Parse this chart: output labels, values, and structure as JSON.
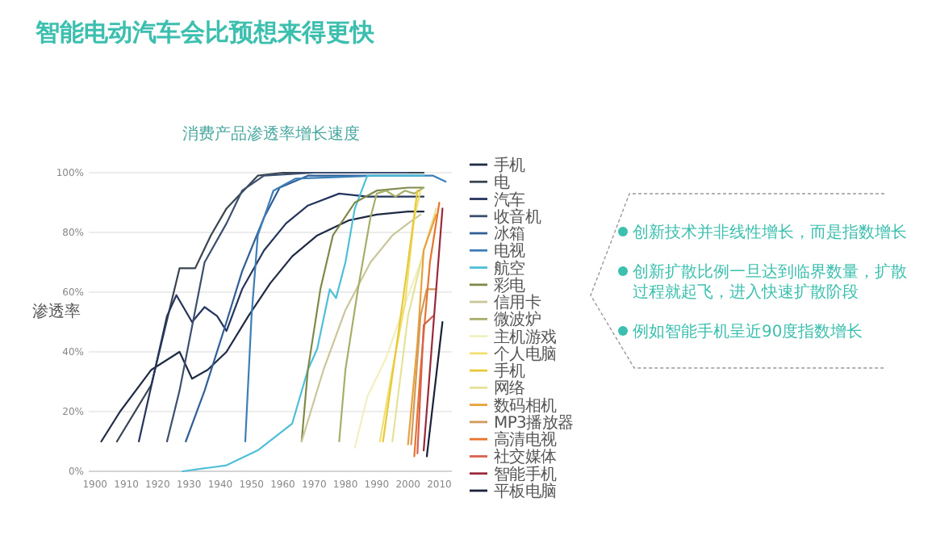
{
  "chart_data": {
    "type": "line",
    "title": "智能电动汽车会比预想来得更快",
    "subtitle": "消费产品渗透率增长速度",
    "ylabel": "渗透率",
    "xlim": [
      1898,
      2014
    ],
    "ylim": [
      0,
      100
    ],
    "xticks": [
      1900,
      1910,
      1920,
      1930,
      1940,
      1950,
      1960,
      1970,
      1980,
      1990,
      2000,
      2010
    ],
    "yticks": [
      {
        "value": 0,
        "label": "0%"
      },
      {
        "value": 20,
        "label": "20%"
      },
      {
        "value": 40,
        "label": "40%"
      },
      {
        "value": 60,
        "label": "60%"
      },
      {
        "value": 80,
        "label": "80%"
      },
      {
        "value": 100,
        "label": "100%"
      }
    ],
    "grid": "y",
    "legend": "right",
    "marker": "none",
    "line_style": "solid",
    "annotations": [
      "创新技术并非线性增长，而是指数增长",
      "创新扩散比例一旦达到临界数量，扩散过程就起飞，进入快速扩散阶段",
      "例如智能手机呈近90度指数增长"
    ],
    "series": [
      {
        "name": "手机",
        "color": "#1f2a44",
        "x": [
          1902,
          1908,
          1918,
          1927,
          1931,
          1936,
          1942,
          1949,
          1956,
          1963,
          1971,
          1981,
          1990,
          2000,
          2005
        ],
        "values": [
          10,
          20,
          34,
          40,
          31,
          34,
          40,
          52,
          63,
          72,
          79,
          84,
          86,
          87,
          87
        ]
      },
      {
        "name": "电",
        "color": "#3a4450",
        "x": [
          1907,
          1918,
          1927,
          1932,
          1937,
          1942,
          1952,
          1960,
          1980,
          2005
        ],
        "values": [
          10,
          29,
          68,
          68,
          79,
          88,
          99,
          100,
          100,
          100
        ]
      },
      {
        "name": "汽车",
        "color": "#24345c",
        "x": [
          1914,
          1923,
          1926,
          1931,
          1935,
          1939,
          1942,
          1947,
          1954,
          1961,
          1968,
          1978,
          1987,
          2000,
          2005
        ],
        "values": [
          10,
          52,
          59,
          50,
          55,
          52,
          47,
          61,
          74,
          83,
          89,
          93,
          92,
          92,
          92
        ]
      },
      {
        "name": "收音机",
        "color": "#3d4f6e",
        "x": [
          1923,
          1927,
          1935,
          1942,
          1947,
          1954,
          1970,
          2000
        ],
        "values": [
          10,
          27,
          70,
          83,
          94,
          99,
          100,
          100
        ]
      },
      {
        "name": "冰箱",
        "color": "#2f5f96",
        "x": [
          1929,
          1935,
          1942,
          1947,
          1954,
          1959,
          1968,
          2005
        ],
        "values": [
          10,
          27,
          50,
          67,
          85,
          95,
          99,
          99
        ]
      },
      {
        "name": "电视",
        "color": "#3c7fb8",
        "x": [
          1948,
          1950,
          1952,
          1957,
          1964,
          1990,
          2008,
          2012
        ],
        "values": [
          10,
          52,
          79,
          94,
          98,
          99,
          99,
          97
        ]
      },
      {
        "name": "航空",
        "color": "#4fbfd8",
        "x": [
          1928,
          1942,
          1952,
          1963,
          1968,
          1971,
          1975,
          1977,
          1980,
          1983,
          1987,
          2005
        ],
        "values": [
          0,
          2,
          7,
          16,
          34,
          41,
          61,
          58,
          70,
          88,
          99,
          99
        ]
      },
      {
        "name": "彩电",
        "color": "#7f8a4a",
        "x": [
          1966,
          1968,
          1972,
          1976,
          1983,
          1990,
          2000,
          2005
        ],
        "values": [
          10,
          34,
          61,
          79,
          90,
          94,
          95,
          95
        ]
      },
      {
        "name": "信用卡",
        "color": "#c9c79a",
        "x": [
          1966,
          1973,
          1980,
          1988,
          1995,
          2000,
          2004
        ],
        "values": [
          10,
          34,
          54,
          70,
          79,
          83,
          86
        ]
      },
      {
        "name": "微波炉",
        "color": "#a9ad6a",
        "x": [
          1978,
          1980,
          1984,
          1988,
          1990,
          1993,
          1996,
          1999,
          2002,
          2005
        ],
        "values": [
          10,
          34,
          61,
          85,
          93,
          94,
          92,
          94,
          93,
          95
        ]
      },
      {
        "name": "主机游戏",
        "color": "#f2efc0",
        "x": [
          1983,
          1987,
          1993,
          1999,
          2004
        ],
        "values": [
          8,
          25,
          38,
          56,
          70
        ]
      },
      {
        "name": "个人电脑",
        "color": "#f0e070",
        "x": [
          1991,
          1995,
          1999,
          2002,
          2004
        ],
        "values": [
          10,
          34,
          56,
          85,
          94
        ]
      },
      {
        "name": "手机",
        "color": "#e8c93a",
        "x": [
          1992,
          1997,
          2000,
          2003
        ],
        "values": [
          10,
          47,
          70,
          94
        ]
      },
      {
        "name": "网络",
        "color": "#e6e29a",
        "x": [
          1995,
          2000,
          2005,
          2009
        ],
        "values": [
          10,
          52,
          74,
          88
        ]
      },
      {
        "name": "数码相机",
        "color": "#e8a23c",
        "x": [
          2000,
          2003,
          2005,
          2009
        ],
        "values": [
          9,
          43,
          74,
          86
        ]
      },
      {
        "name": "MP3播放器",
        "color": "#d29a5a",
        "x": [
          2001,
          2004,
          2006,
          2009
        ],
        "values": [
          9,
          52,
          61,
          61
        ]
      },
      {
        "name": "高清电视",
        "color": "#e8742e",
        "x": [
          2002,
          2004,
          2007,
          2010
        ],
        "values": [
          5,
          34,
          70,
          90
        ]
      },
      {
        "name": "社交媒体",
        "color": "#d8604e",
        "x": [
          2003,
          2005,
          2008
        ],
        "values": [
          6,
          49,
          52
        ]
      },
      {
        "name": "智能手机",
        "color": "#9a2a3a",
        "x": [
          2005,
          2007,
          2011
        ],
        "values": [
          7,
          34,
          88
        ]
      },
      {
        "name": "平板电脑",
        "color": "#1a2238",
        "x": [
          2006,
          2011
        ],
        "values": [
          5,
          50
        ]
      }
    ]
  }
}
